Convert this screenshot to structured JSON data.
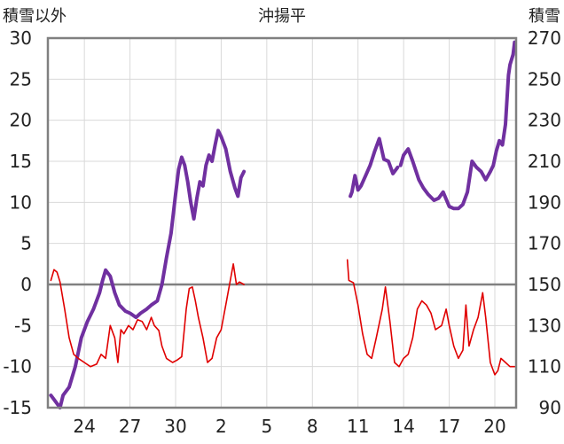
{
  "chart_data": {
    "type": "line",
    "title": "沖揚平",
    "left_axis_label": "積雪以外",
    "right_axis_label": "積雪",
    "left_ylim": [
      -15,
      30
    ],
    "left_ticks": [
      30,
      25,
      20,
      15,
      10,
      5,
      0,
      -5,
      -10,
      -15
    ],
    "right_ylim": [
      90,
      270
    ],
    "right_ticks": [
      270,
      250,
      230,
      210,
      190,
      170,
      150,
      130,
      110,
      90
    ],
    "x_range": [
      21.6,
      52.4
    ],
    "x_ticks": [
      {
        "x": 24,
        "label": "24"
      },
      {
        "x": 27,
        "label": "27"
      },
      {
        "x": 30,
        "label": "30"
      },
      {
        "x": 33,
        "label": "2"
      },
      {
        "x": 36,
        "label": "5"
      },
      {
        "x": 39,
        "label": "8"
      },
      {
        "x": 42,
        "label": "11"
      },
      {
        "x": 45,
        "label": "14"
      },
      {
        "x": 48,
        "label": "17"
      },
      {
        "x": 51,
        "label": "20"
      }
    ],
    "grid": true,
    "zero_line": 0,
    "series": [
      {
        "key": "snow_depth",
        "axis": "right",
        "color": "#7030a0",
        "points": [
          [
            21.8,
            96
          ],
          [
            22.1,
            93
          ],
          [
            22.4,
            90
          ],
          [
            22.6,
            96
          ],
          [
            23.0,
            100
          ],
          [
            23.4,
            110
          ],
          [
            23.8,
            124
          ],
          [
            24.2,
            132
          ],
          [
            24.6,
            138
          ],
          [
            25.0,
            146
          ],
          [
            25.2,
            152
          ],
          [
            25.4,
            157
          ],
          [
            25.7,
            154
          ],
          [
            26.0,
            146
          ],
          [
            26.3,
            140
          ],
          [
            26.7,
            137
          ],
          [
            27.0,
            136
          ],
          [
            27.4,
            134
          ],
          [
            27.7,
            136
          ],
          [
            28.1,
            138
          ],
          [
            28.4,
            140
          ],
          [
            28.8,
            142
          ],
          [
            29.1,
            150
          ],
          [
            29.4,
            163
          ],
          [
            29.7,
            175
          ],
          [
            30.0,
            194
          ],
          [
            30.2,
            206
          ],
          [
            30.4,
            212
          ],
          [
            30.6,
            208
          ],
          [
            30.8,
            200
          ],
          [
            31.0,
            190
          ],
          [
            31.2,
            182
          ],
          [
            31.4,
            192
          ],
          [
            31.6,
            200
          ],
          [
            31.8,
            198
          ],
          [
            32.0,
            208
          ],
          [
            32.2,
            213
          ],
          [
            32.4,
            210
          ],
          [
            32.6,
            218
          ],
          [
            32.8,
            225
          ],
          [
            33.0,
            222
          ],
          [
            33.3,
            216
          ],
          [
            33.6,
            205
          ],
          [
            33.9,
            197
          ],
          [
            34.1,
            193
          ],
          [
            34.3,
            202
          ],
          [
            34.5,
            205
          ],
          [
            null,
            null
          ],
          [
            41.5,
            193
          ],
          [
            41.6,
            195
          ],
          [
            41.8,
            203
          ],
          [
            42.0,
            196
          ],
          [
            42.2,
            198
          ],
          [
            42.5,
            203
          ],
          [
            42.8,
            208
          ],
          [
            43.1,
            215
          ],
          [
            43.4,
            221
          ],
          [
            43.7,
            211
          ],
          [
            44.0,
            210
          ],
          [
            44.3,
            204
          ],
          [
            44.6,
            207
          ],
          [
            null,
            null
          ],
          [
            44.8,
            208
          ],
          [
            45.0,
            213
          ],
          [
            45.3,
            216
          ],
          [
            45.6,
            210
          ],
          [
            46.0,
            201
          ],
          [
            46.3,
            197
          ],
          [
            46.6,
            194
          ],
          [
            47.0,
            191
          ],
          [
            47.3,
            192
          ],
          [
            47.6,
            195
          ],
          [
            48.0,
            188
          ],
          [
            48.3,
            187
          ],
          [
            48.6,
            187
          ],
          [
            48.9,
            189
          ],
          [
            49.2,
            195
          ],
          [
            49.5,
            210
          ],
          [
            49.8,
            207
          ],
          [
            50.1,
            205
          ],
          [
            50.4,
            201
          ],
          [
            50.7,
            205
          ],
          [
            50.9,
            208
          ],
          [
            51.1,
            215
          ],
          [
            51.3,
            220
          ],
          [
            51.5,
            218
          ],
          [
            51.7,
            228
          ],
          [
            51.8,
            240
          ],
          [
            51.9,
            252
          ],
          [
            52.0,
            257
          ],
          [
            52.2,
            262
          ],
          [
            52.3,
            268
          ]
        ]
      },
      {
        "key": "other",
        "axis": "left",
        "color": "#e00000",
        "points": [
          [
            21.8,
            0.5
          ],
          [
            22.0,
            1.8
          ],
          [
            22.2,
            1.5
          ],
          [
            22.4,
            0.3
          ],
          [
            22.7,
            -3.0
          ],
          [
            23.0,
            -6.5
          ],
          [
            23.3,
            -8.5
          ],
          [
            23.6,
            -9.0
          ],
          [
            24.0,
            -9.5
          ],
          [
            24.4,
            -10.0
          ],
          [
            24.8,
            -9.7
          ],
          [
            25.1,
            -8.5
          ],
          [
            25.4,
            -9.0
          ],
          [
            25.7,
            -5.0
          ],
          [
            26.0,
            -6.5
          ],
          [
            26.2,
            -9.5
          ],
          [
            26.4,
            -5.5
          ],
          [
            26.6,
            -6.0
          ],
          [
            26.9,
            -5.0
          ],
          [
            27.2,
            -5.5
          ],
          [
            27.5,
            -4.3
          ],
          [
            27.8,
            -4.5
          ],
          [
            28.1,
            -5.5
          ],
          [
            28.4,
            -4.0
          ],
          [
            28.6,
            -5.0
          ],
          [
            28.9,
            -5.6
          ],
          [
            29.1,
            -7.5
          ],
          [
            29.4,
            -9.0
          ],
          [
            29.8,
            -9.5
          ],
          [
            30.1,
            -9.2
          ],
          [
            30.4,
            -8.8
          ],
          [
            30.7,
            -3.0
          ],
          [
            30.9,
            -0.5
          ],
          [
            31.1,
            -0.3
          ],
          [
            31.3,
            -2.0
          ],
          [
            31.5,
            -4.0
          ],
          [
            31.8,
            -6.5
          ],
          [
            32.1,
            -9.5
          ],
          [
            32.4,
            -9.0
          ],
          [
            32.7,
            -6.5
          ],
          [
            33.0,
            -5.5
          ],
          [
            33.3,
            -2.5
          ],
          [
            33.6,
            0.5
          ],
          [
            33.8,
            2.5
          ],
          [
            34.0,
            0.0
          ],
          [
            34.2,
            0.3
          ],
          [
            34.5,
            0.0
          ],
          [
            null,
            null
          ],
          [
            41.3,
            3.0
          ],
          [
            41.4,
            0.5
          ],
          [
            41.7,
            0.2
          ],
          [
            42.0,
            -2.5
          ],
          [
            42.3,
            -6.0
          ],
          [
            42.6,
            -8.5
          ],
          [
            42.9,
            -9.0
          ],
          [
            43.2,
            -6.5
          ],
          [
            43.6,
            -3.0
          ],
          [
            43.8,
            -0.3
          ],
          [
            44.1,
            -4.5
          ],
          [
            44.4,
            -9.5
          ],
          [
            44.7,
            -10.0
          ],
          [
            45.0,
            -9.0
          ],
          [
            45.3,
            -8.5
          ],
          [
            45.6,
            -6.5
          ],
          [
            45.9,
            -3.0
          ],
          [
            46.2,
            -2.0
          ],
          [
            46.5,
            -2.5
          ],
          [
            46.8,
            -3.5
          ],
          [
            47.1,
            -5.5
          ],
          [
            47.5,
            -5.0
          ],
          [
            47.8,
            -3.0
          ],
          [
            48.0,
            -5.0
          ],
          [
            48.3,
            -7.5
          ],
          [
            48.6,
            -9.0
          ],
          [
            48.9,
            -8.0
          ],
          [
            49.1,
            -2.5
          ],
          [
            49.3,
            -7.5
          ],
          [
            49.6,
            -5.5
          ],
          [
            49.9,
            -4.0
          ],
          [
            50.2,
            -1.0
          ],
          [
            50.4,
            -4.0
          ],
          [
            50.7,
            -9.5
          ],
          [
            51.0,
            -11.0
          ],
          [
            51.2,
            -10.5
          ],
          [
            51.4,
            -9.0
          ],
          [
            51.7,
            -9.5
          ],
          [
            52.0,
            -10.0
          ],
          [
            52.3,
            -10.0
          ]
        ]
      }
    ]
  }
}
